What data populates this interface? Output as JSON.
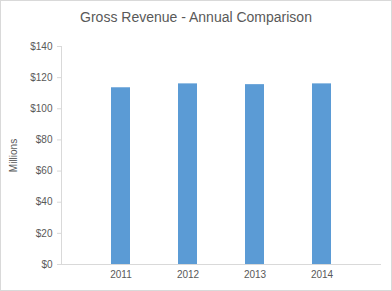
{
  "chart_data": {
    "type": "bar",
    "title": "Gross Revenue - Annual Comparison",
    "y_label": "Millions",
    "categories": [
      "2011",
      "2012",
      "2013",
      "2014"
    ],
    "values": [
      113.5,
      116,
      115.5,
      116
    ],
    "color": "#5b9bd5",
    "ylim": [
      0,
      140
    ],
    "yticks": [
      {
        "value": 0,
        "label": "$0"
      },
      {
        "value": 20,
        "label": "$20"
      },
      {
        "value": 40,
        "label": "$40"
      },
      {
        "value": 60,
        "label": "$60"
      },
      {
        "value": 80,
        "label": "$80"
      },
      {
        "value": 100,
        "label": "$100"
      },
      {
        "value": 120,
        "label": "$120"
      },
      {
        "value": 140,
        "label": "$140"
      }
    ],
    "grid": false
  }
}
